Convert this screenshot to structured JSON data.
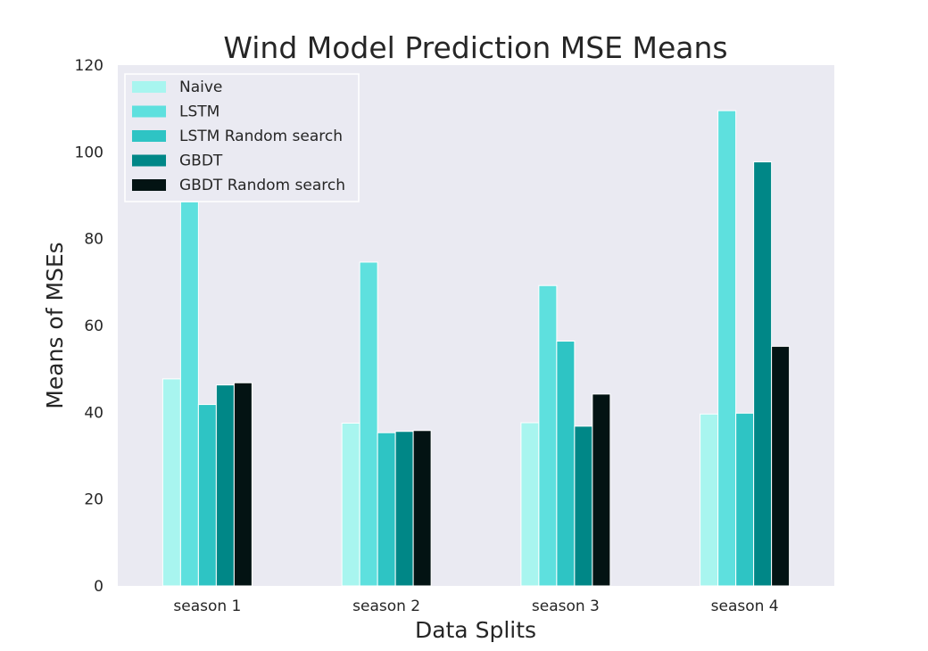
{
  "chart_data": {
    "type": "bar",
    "title": "Wind Model Prediction MSE Means",
    "xlabel": "Data Splits",
    "ylabel": "Means of MSEs",
    "categories": [
      "season 1",
      "season 2",
      "season 3",
      "season 4"
    ],
    "ylim": [
      0,
      120
    ],
    "yticks": [
      0,
      20,
      40,
      60,
      80,
      100,
      120
    ],
    "series": [
      {
        "name": "Naive",
        "color": "#a8f5ef",
        "values": [
          47.7,
          37.5,
          37.6,
          39.6
        ]
      },
      {
        "name": "LSTM",
        "color": "#5ee0de",
        "values": [
          88.5,
          74.6,
          69.2,
          109.5
        ]
      },
      {
        "name": "LSTM Random search",
        "color": "#2ec4c4",
        "values": [
          41.8,
          35.3,
          56.4,
          39.8
        ]
      },
      {
        "name": "GBDT",
        "color": "#008787",
        "values": [
          46.3,
          35.6,
          36.8,
          97.7
        ]
      },
      {
        "name": "GBDT Random search",
        "color": "#031313",
        "values": [
          46.8,
          35.8,
          44.2,
          55.2
        ]
      }
    ],
    "grid": false,
    "legend_position": "top-left",
    "plot_background": "#eaeaf2"
  }
}
